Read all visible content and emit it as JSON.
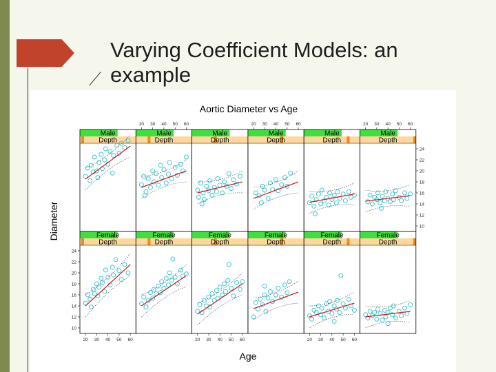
{
  "slide": {
    "title": "Varying Coefficient Models: an example"
  },
  "colors": {
    "sidebar": "#7e8a4f",
    "accent_arrow": "#c1432b",
    "points": "#3ec8d6",
    "fit_line": "#d21b1b",
    "strip_top": "#3ee03e",
    "strip_bottom": "#ffd79e",
    "strip_marker": "#f08a1b"
  },
  "icons": {
    "decoration": "arrow-shape"
  },
  "chart_data": {
    "type": "scatter",
    "title": "Aortic Diameter vs Age",
    "xlabel": "Age",
    "ylabel": "Diameter",
    "layout": {
      "columns": 6,
      "rows": 2
    },
    "xlim": [
      15,
      65
    ],
    "ylim": [
      9,
      25
    ],
    "x_ticks": [
      20,
      30,
      40,
      50,
      60
    ],
    "y_ticks": [
      10,
      12,
      14,
      16,
      18,
      20,
      22,
      24
    ],
    "top_tick_labels": [
      "20",
      "30",
      "40",
      "50",
      "60"
    ],
    "bottom_tick_labels": [
      "20",
      "30",
      "40",
      "50",
      "60"
    ],
    "y_tick_labels": [
      "10",
      "12",
      "14",
      "16",
      "18",
      "20",
      "22",
      "24"
    ],
    "panels": [
      {
        "sex": "Male",
        "depth": "Depth",
        "depth_level": 0.0,
        "fit": {
          "x": [
            20,
            60
          ],
          "y": [
            18.5,
            24.5
          ]
        },
        "points": [
          [
            20,
            19
          ],
          [
            22,
            20.5
          ],
          [
            24,
            18.2
          ],
          [
            25,
            21
          ],
          [
            27,
            19.8
          ],
          [
            28,
            22.5
          ],
          [
            30,
            20
          ],
          [
            31,
            18.8
          ],
          [
            32,
            21.5
          ],
          [
            34,
            23
          ],
          [
            35,
            20.4
          ],
          [
            37,
            22
          ],
          [
            38,
            24
          ],
          [
            40,
            21.2
          ],
          [
            42,
            23.5
          ],
          [
            44,
            19.6
          ],
          [
            45,
            22.8
          ],
          [
            48,
            24.6
          ],
          [
            50,
            23.2
          ],
          [
            52,
            25
          ],
          [
            55,
            24.2
          ],
          [
            58,
            25.5
          ]
        ]
      },
      {
        "sex": "Male",
        "depth": "Depth",
        "depth_level": 0.2,
        "fit": {
          "x": [
            20,
            60
          ],
          "y": [
            17,
            20
          ]
        },
        "points": [
          [
            20,
            17.5
          ],
          [
            22,
            19
          ],
          [
            24,
            16.2
          ],
          [
            26,
            18.6
          ],
          [
            28,
            17
          ],
          [
            30,
            20
          ],
          [
            31,
            18
          ],
          [
            33,
            19.5
          ],
          [
            35,
            17.4
          ],
          [
            37,
            21
          ],
          [
            38,
            18.8
          ],
          [
            40,
            20.2
          ],
          [
            42,
            17.8
          ],
          [
            44,
            19.4
          ],
          [
            45,
            21.5
          ],
          [
            47,
            18.6
          ],
          [
            50,
            20.6
          ],
          [
            52,
            19.2
          ],
          [
            55,
            21.2
          ],
          [
            57,
            20
          ],
          [
            60,
            22.5
          ],
          [
            23,
            15.5
          ]
        ]
      },
      {
        "sex": "Male",
        "depth": "Depth",
        "depth_level": 0.4,
        "fit": {
          "x": [
            20,
            60
          ],
          "y": [
            16,
            18
          ]
        },
        "points": [
          [
            20,
            16.5
          ],
          [
            21,
            15.2
          ],
          [
            23,
            17.8
          ],
          [
            25,
            16
          ],
          [
            26,
            14.8
          ],
          [
            28,
            17.2
          ],
          [
            30,
            16.4
          ],
          [
            31,
            18.2
          ],
          [
            33,
            15.6
          ],
          [
            35,
            17
          ],
          [
            37,
            16.2
          ],
          [
            38,
            18.6
          ],
          [
            40,
            17.4
          ],
          [
            42,
            16
          ],
          [
            44,
            18
          ],
          [
            46,
            17.2
          ],
          [
            48,
            19.5
          ],
          [
            50,
            16.8
          ],
          [
            52,
            18.4
          ],
          [
            55,
            17.6
          ],
          [
            58,
            19
          ],
          [
            24,
            14
          ]
        ]
      },
      {
        "sex": "Male",
        "depth": "Depth",
        "depth_level": 0.6,
        "fit": {
          "x": [
            20,
            60
          ],
          "y": [
            15,
            18
          ]
        },
        "points": [
          [
            22,
            16
          ],
          [
            25,
            15.5
          ],
          [
            28,
            17.2
          ],
          [
            30,
            16.5
          ],
          [
            33,
            15
          ],
          [
            35,
            17.8
          ],
          [
            37,
            16.6
          ],
          [
            40,
            18.4
          ],
          [
            42,
            16.4
          ],
          [
            45,
            17.5
          ],
          [
            48,
            18.8
          ],
          [
            50,
            17.2
          ],
          [
            53,
            19.6
          ],
          [
            27,
            14.2
          ]
        ]
      },
      {
        "sex": "Male",
        "depth": "Depth",
        "depth_level": 0.8,
        "fit": {
          "x": [
            20,
            60
          ],
          "y": [
            14.3,
            15.8
          ]
        },
        "points": [
          [
            20,
            14.2
          ],
          [
            22,
            15.4
          ],
          [
            24,
            13.6
          ],
          [
            26,
            14.8
          ],
          [
            28,
            15.8
          ],
          [
            30,
            14
          ],
          [
            31,
            16.5
          ],
          [
            33,
            14.6
          ],
          [
            35,
            15.2
          ],
          [
            37,
            13.8
          ],
          [
            38,
            16
          ],
          [
            40,
            14.8
          ],
          [
            42,
            15.6
          ],
          [
            44,
            14.2
          ],
          [
            45,
            16.2
          ],
          [
            47,
            15
          ],
          [
            50,
            15.8
          ],
          [
            52,
            14.6
          ],
          [
            55,
            16.2
          ],
          [
            57,
            15.2
          ],
          [
            60,
            15.6
          ],
          [
            25,
            12.2
          ]
        ]
      },
      {
        "sex": "Male",
        "depth": "Depth",
        "depth_level": 1.0,
        "fit": {
          "x": [
            20,
            60
          ],
          "y": [
            14.5,
            15.5
          ]
        },
        "points": [
          [
            22,
            14.4
          ],
          [
            24,
            15.6
          ],
          [
            26,
            14
          ],
          [
            28,
            15.2
          ],
          [
            30,
            14.8
          ],
          [
            31,
            16
          ],
          [
            33,
            14.2
          ],
          [
            35,
            15.4
          ],
          [
            37,
            14.6
          ],
          [
            38,
            16.2
          ],
          [
            40,
            15
          ],
          [
            42,
            14.4
          ],
          [
            44,
            15.8
          ],
          [
            45,
            14.8
          ],
          [
            47,
            16.4
          ],
          [
            50,
            15.2
          ],
          [
            52,
            14.6
          ],
          [
            55,
            16
          ],
          [
            57,
            15
          ],
          [
            60,
            15.8
          ],
          [
            34,
            13.2
          ]
        ]
      },
      {
        "sex": "Female",
        "depth": "Depth",
        "depth_level": 0.0,
        "fit": {
          "x": [
            20,
            60
          ],
          "y": [
            14,
            21.5
          ]
        },
        "points": [
          [
            20,
            14.5
          ],
          [
            22,
            16
          ],
          [
            24,
            15.2
          ],
          [
            25,
            13.8
          ],
          [
            27,
            17
          ],
          [
            28,
            16.2
          ],
          [
            30,
            18
          ],
          [
            31,
            15.8
          ],
          [
            32,
            17.4
          ],
          [
            34,
            19
          ],
          [
            35,
            18.2
          ],
          [
            37,
            16.6
          ],
          [
            38,
            20.5
          ],
          [
            40,
            19.2
          ],
          [
            42,
            17.8
          ],
          [
            44,
            21
          ],
          [
            45,
            19.6
          ],
          [
            47,
            22.4
          ],
          [
            50,
            20.4
          ],
          [
            52,
            18.8
          ],
          [
            55,
            21.5
          ],
          [
            58,
            20
          ]
        ]
      },
      {
        "sex": "Female",
        "depth": "Depth",
        "depth_level": 0.2,
        "fit": {
          "x": [
            20,
            60
          ],
          "y": [
            14,
            19.5
          ]
        },
        "points": [
          [
            20,
            14.4
          ],
          [
            22,
            15.6
          ],
          [
            24,
            13.8
          ],
          [
            26,
            15
          ],
          [
            28,
            16.4
          ],
          [
            30,
            15.4
          ],
          [
            31,
            17
          ],
          [
            33,
            16.2
          ],
          [
            35,
            17.6
          ],
          [
            37,
            16.4
          ],
          [
            38,
            18.4
          ],
          [
            40,
            17.2
          ],
          [
            42,
            19
          ],
          [
            44,
            17.8
          ],
          [
            45,
            20
          ],
          [
            47,
            18.6
          ],
          [
            50,
            19.2
          ],
          [
            52,
            18
          ],
          [
            55,
            20.5
          ],
          [
            57,
            19.4
          ],
          [
            60,
            19.8
          ],
          [
            48,
            22.5
          ]
        ]
      },
      {
        "sex": "Female",
        "depth": "Depth",
        "depth_level": 0.4,
        "fit": {
          "x": [
            20,
            60
          ],
          "y": [
            12.5,
            18
          ]
        },
        "points": [
          [
            20,
            13
          ],
          [
            22,
            14.2
          ],
          [
            24,
            12.8
          ],
          [
            26,
            15
          ],
          [
            28,
            14
          ],
          [
            30,
            15.6
          ],
          [
            31,
            13.8
          ],
          [
            33,
            16.2
          ],
          [
            35,
            15
          ],
          [
            37,
            16.8
          ],
          [
            38,
            15.4
          ],
          [
            40,
            17.4
          ],
          [
            42,
            16
          ],
          [
            44,
            18
          ],
          [
            45,
            16.6
          ],
          [
            47,
            18.6
          ],
          [
            50,
            17.2
          ],
          [
            52,
            15.8
          ],
          [
            55,
            18.2
          ],
          [
            58,
            17
          ],
          [
            60,
            18.4
          ],
          [
            48,
            21.5
          ]
        ]
      },
      {
        "sex": "Female",
        "depth": "Depth",
        "depth_level": 0.6,
        "fit": {
          "x": [
            20,
            60
          ],
          "y": [
            13.5,
            16.5
          ]
        },
        "points": [
          [
            20,
            12
          ],
          [
            22,
            14.6
          ],
          [
            24,
            13.4
          ],
          [
            26,
            15.2
          ],
          [
            28,
            14.2
          ],
          [
            30,
            16
          ],
          [
            31,
            13
          ],
          [
            33,
            15.4
          ],
          [
            35,
            16.6
          ],
          [
            37,
            14.8
          ],
          [
            40,
            16
          ],
          [
            42,
            17.2
          ],
          [
            45,
            15.6
          ],
          [
            48,
            17.8
          ],
          [
            50,
            16.4
          ],
          [
            52,
            18.4
          ],
          [
            30,
            17.6
          ]
        ]
      },
      {
        "sex": "Female",
        "depth": "Depth",
        "depth_level": 0.8,
        "fit": {
          "x": [
            20,
            60
          ],
          "y": [
            12,
            14.5
          ]
        },
        "points": [
          [
            20,
            12.2
          ],
          [
            22,
            11.6
          ],
          [
            24,
            13.2
          ],
          [
            26,
            12.8
          ],
          [
            28,
            14
          ],
          [
            30,
            12.4
          ],
          [
            31,
            13.6
          ],
          [
            33,
            11.8
          ],
          [
            35,
            14.4
          ],
          [
            37,
            13
          ],
          [
            38,
            14.8
          ],
          [
            40,
            12.6
          ],
          [
            42,
            14
          ],
          [
            44,
            13.4
          ],
          [
            45,
            15
          ],
          [
            47,
            12.8
          ],
          [
            50,
            14.4
          ],
          [
            52,
            13.6
          ],
          [
            55,
            15.2
          ],
          [
            57,
            14
          ],
          [
            60,
            13.2
          ],
          [
            42,
            11.2
          ],
          [
            48,
            19.5
          ]
        ]
      },
      {
        "sex": "Female",
        "depth": "Depth",
        "depth_level": 1.0,
        "fit": {
          "x": [
            20,
            60
          ],
          "y": [
            12,
            13
          ]
        },
        "points": [
          [
            20,
            12.4
          ],
          [
            22,
            11.8
          ],
          [
            24,
            13
          ],
          [
            26,
            12.2
          ],
          [
            28,
            12.8
          ],
          [
            30,
            11.6
          ],
          [
            31,
            13.4
          ],
          [
            33,
            12.6
          ],
          [
            35,
            11.4
          ],
          [
            37,
            13.2
          ],
          [
            38,
            12
          ],
          [
            40,
            12.8
          ],
          [
            42,
            13.6
          ],
          [
            44,
            12.4
          ],
          [
            45,
            14
          ],
          [
            47,
            11.8
          ],
          [
            50,
            13
          ],
          [
            52,
            12.2
          ],
          [
            55,
            13.6
          ],
          [
            57,
            12.6
          ],
          [
            60,
            14.2
          ],
          [
            40,
            10.8
          ]
        ]
      }
    ]
  }
}
